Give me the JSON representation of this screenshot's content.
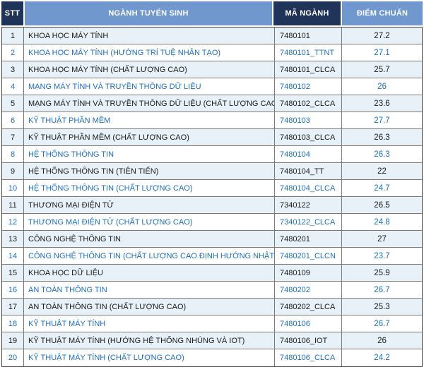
{
  "table": {
    "columns": [
      {
        "key": "stt",
        "label": "STT"
      },
      {
        "key": "name",
        "label": "NGÀNH TUYỂN SINH"
      },
      {
        "key": "code",
        "label": "MÃ NGÀNH"
      },
      {
        "key": "score",
        "label": "ĐIỂM CHUẨN"
      }
    ],
    "rows": [
      {
        "stt": "1",
        "name": "KHOA HỌC MÁY TÍNH",
        "code": "7480101",
        "score": "27.2"
      },
      {
        "stt": "2",
        "name": "KHOA HỌC MÁY TÍNH (HƯỚNG TRÍ TUỆ NHÂN TẠO)",
        "code": "7480101_TTNT",
        "score": "27.1"
      },
      {
        "stt": "3",
        "name": "KHOA HỌC MÁY TÍNH (CHẤT LƯỢNG CAO)",
        "code": "7480101_CLCA",
        "score": "25.7"
      },
      {
        "stt": "4",
        "name": "MẠNG MÁY TÍNH VÀ TRUYỀN THÔNG DỮ LIỆU",
        "code": "7480102",
        "score": "26"
      },
      {
        "stt": "5",
        "name": "MẠNG MÁY TÍNH VÀ TRUYỀN THÔNG DỮ LIỆU (CHẤT LƯỢNG CAO)",
        "code": "7480102_CLCA",
        "score": "23.6"
      },
      {
        "stt": "6",
        "name": "KỸ THUẬT PHẦN MỀM",
        "code": "7480103",
        "score": "27.7"
      },
      {
        "stt": "7",
        "name": "KỸ THUẬT PHẦN MỀM (CHẤT LƯỢNG CAO)",
        "code": "7480103_CLCA",
        "score": "26.3"
      },
      {
        "stt": "8",
        "name": "HỆ THỐNG THÔNG TIN",
        "code": "7480104",
        "score": "26.3"
      },
      {
        "stt": "9",
        "name": "HỆ THỐNG THÔNG TIN (TIÊN TIẾN)",
        "code": "7480104_TT",
        "score": "22"
      },
      {
        "stt": "10",
        "name": "HỆ THỐNG THÔNG TIN (CHẤT LƯỢNG CAO)",
        "code": "7480104_CLCA",
        "score": "24.7"
      },
      {
        "stt": "11",
        "name": "THƯƠNG MẠI ĐIỆN TỬ",
        "code": "7340122",
        "score": "26.5"
      },
      {
        "stt": "12",
        "name": "THƯƠNG MẠI ĐIỆN TỬ (CHẤT LƯỢNG CAO)",
        "code": "7340122_CLCA",
        "score": "24.8"
      },
      {
        "stt": "13",
        "name": "CÔNG NGHỆ THÔNG TIN",
        "code": "7480201",
        "score": "27"
      },
      {
        "stt": "14",
        "name": "CÔNG NGHỆ THÔNG TIN (CHẤT LƯỢNG CAO ĐỊNH HƯỚNG NHẬT BẢN)",
        "code": "7480201_CLCN",
        "score": "23.7"
      },
      {
        "stt": "15",
        "name": "KHOA HỌC DỮ LIỆU",
        "code": "7480109",
        "score": "25.9"
      },
      {
        "stt": "16",
        "name": "AN TOÀN THÔNG TIN",
        "code": "7480202",
        "score": "26.7"
      },
      {
        "stt": "17",
        "name": "AN TOÀN THÔNG TIN (CHẤT LƯỢNG CAO)",
        "code": "7480202_CLCA",
        "score": "25.3"
      },
      {
        "stt": "18",
        "name": "KỸ THUẬT MÁY TÍNH",
        "code": "7480106",
        "score": "26.7"
      },
      {
        "stt": "19",
        "name": "KỸ THUẬT MÁY TÍNH (HƯỚNG HỆ THỐNG NHÚNG VÀ IOT)",
        "code": "7480106_IOT",
        "score": "26"
      },
      {
        "stt": "20",
        "name": "KỸ THUẬT MÁY TÍNH (CHẤT LƯỢNG CAO)",
        "code": "7480106_CLCA",
        "score": "24.2"
      }
    ]
  },
  "colors": {
    "header_dark_navy": "#203459",
    "header_medium_blue": "#7097CE",
    "header_text": "#FFFFFF",
    "row_alt_background": "#E8F0F8",
    "row_white_background": "#FFFFFF",
    "row_dark_text": "#1B1B1B",
    "row_blue_text": "#1E6FC0",
    "border": "#7A7A7A"
  },
  "chart_data": {
    "type": "table",
    "title": "",
    "columns": [
      "STT",
      "NGÀNH TUYỂN SINH",
      "MÃ NGÀNH",
      "ĐIỂM CHUẨN"
    ],
    "rows": [
      [
        "1",
        "KHOA HỌC MÁY TÍNH",
        "7480101",
        27.2
      ],
      [
        "2",
        "KHOA HỌC MÁY TÍNH (HƯỚNG TRÍ TUỆ NHÂN TẠO)",
        "7480101_TTNT",
        27.1
      ],
      [
        "3",
        "KHOA HỌC MÁY TÍNH (CHẤT LƯỢNG CAO)",
        "7480101_CLCA",
        25.7
      ],
      [
        "4",
        "MẠNG MÁY TÍNH VÀ TRUYỀN THÔNG DỮ LIỆU",
        "7480102",
        26
      ],
      [
        "5",
        "MẠNG MÁY TÍNH VÀ TRUYỀN THÔNG DỮ LIỆU (CHẤT LƯỢNG CAO)",
        "7480102_CLCA",
        23.6
      ],
      [
        "6",
        "KỸ THUẬT PHẦN MỀM",
        "7480103",
        27.7
      ],
      [
        "7",
        "KỸ THUẬT PHẦN MỀM (CHẤT LƯỢNG CAO)",
        "7480103_CLCA",
        26.3
      ],
      [
        "8",
        "HỆ THỐNG THÔNG TIN",
        "7480104",
        26.3
      ],
      [
        "9",
        "HỆ THỐNG THÔNG TIN (TIÊN TIẾN)",
        "7480104_TT",
        22
      ],
      [
        "10",
        "HỆ THỐNG THÔNG TIN (CHẤT LƯỢNG CAO)",
        "7480104_CLCA",
        24.7
      ],
      [
        "11",
        "THƯƠNG MẠI ĐIỆN TỬ",
        "7340122",
        26.5
      ],
      [
        "12",
        "THƯƠNG MẠI ĐIỆN TỬ (CHẤT LƯỢNG CAO)",
        "7340122_CLCA",
        24.8
      ],
      [
        "13",
        "CÔNG NGHỆ THÔNG TIN",
        "7480201",
        27
      ],
      [
        "14",
        "CÔNG NGHỆ THÔNG TIN (CHẤT LƯỢNG CAO ĐỊNH HƯỚNG NHẬT BẢN)",
        "7480201_CLCN",
        23.7
      ],
      [
        "15",
        "KHOA HỌC DỮ LIỆU",
        "7480109",
        25.9
      ],
      [
        "16",
        "AN TOÀN THÔNG TIN",
        "7480202",
        26.7
      ],
      [
        "17",
        "AN TOÀN THÔNG TIN (CHẤT LƯỢNG CAO)",
        "7480202_CLCA",
        25.3
      ],
      [
        "18",
        "KỸ THUẬT MÁY TÍNH",
        "7480106",
        26.7
      ],
      [
        "19",
        "KỸ THUẬT MÁY TÍNH (HƯỚNG HỆ THỐNG NHÚNG VÀ IOT)",
        "7480106_IOT",
        26
      ],
      [
        "20",
        "KỸ THUẬT MÁY TÍNH (CHẤT LƯỢNG CAO)",
        "7480106_CLCA",
        24.2
      ]
    ]
  }
}
